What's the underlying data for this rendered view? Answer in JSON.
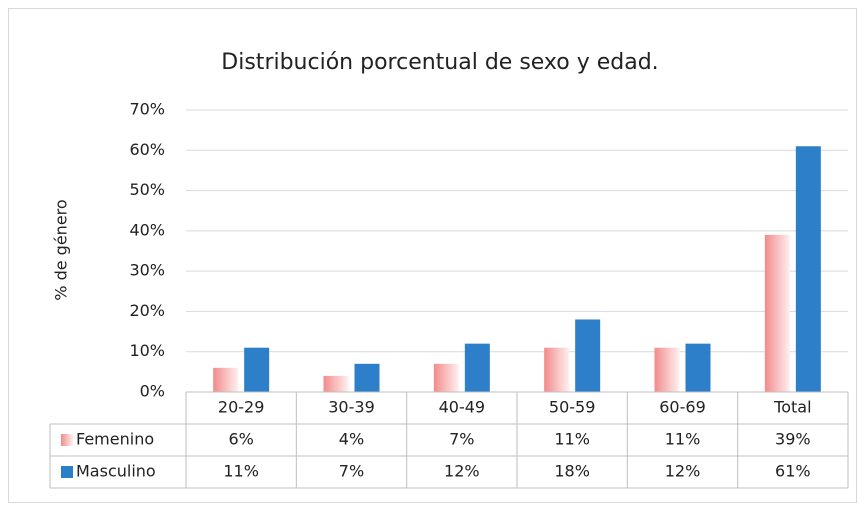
{
  "chart_data": {
    "type": "bar",
    "title": "Distribución porcentual de sexo y edad.",
    "y_label": "% de género",
    "categories": [
      "20-29",
      "30-39",
      "40-49",
      "50-59",
      "60-69",
      "Total"
    ],
    "series": [
      {
        "name": "Femenino",
        "color": "#f28b8b",
        "values": [
          6,
          4,
          7,
          11,
          11,
          39
        ],
        "value_labels": [
          "6%",
          "4%",
          "7%",
          "11%",
          "11%",
          "39%"
        ]
      },
      {
        "name": "Masculino",
        "color": "#2e7fc9",
        "values": [
          11,
          7,
          12,
          18,
          12,
          61
        ],
        "value_labels": [
          "11%",
          "7%",
          "12%",
          "18%",
          "12%",
          "61%"
        ]
      }
    ],
    "ylim": [
      0,
      70
    ],
    "yticks": [
      {
        "value": 0,
        "label": "0%"
      },
      {
        "value": 10,
        "label": "10%"
      },
      {
        "value": 20,
        "label": "20%"
      },
      {
        "value": 30,
        "label": "30%"
      },
      {
        "value": 40,
        "label": "40%"
      },
      {
        "value": 50,
        "label": "50%"
      },
      {
        "value": 60,
        "label": "60%"
      },
      {
        "value": 70,
        "label": "70%"
      }
    ],
    "grid": true
  }
}
